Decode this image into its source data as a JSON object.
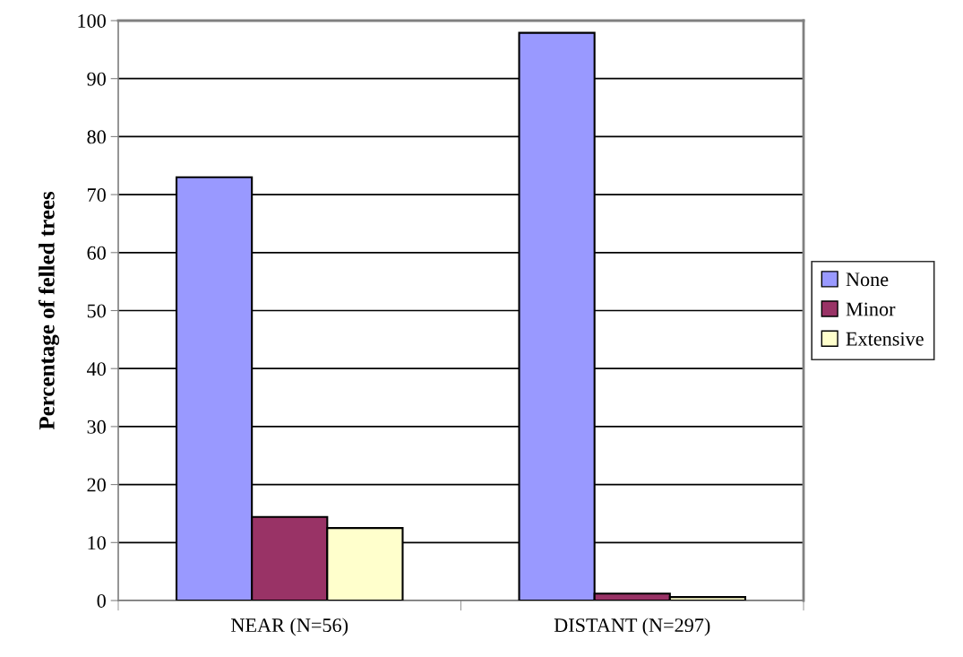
{
  "chart_data": {
    "type": "bar",
    "ylabel": "Percentage of felled trees",
    "categories": [
      "NEAR (N=56)",
      "DISTANT (N=297)"
    ],
    "series": [
      {
        "name": "None",
        "color": "#9999ff",
        "values": [
          73,
          97.9
        ]
      },
      {
        "name": "Minor",
        "color": "#993366",
        "values": [
          14.4,
          1.2
        ]
      },
      {
        "name": "Extensive",
        "color": "#ffffcc",
        "values": [
          12.5,
          0.6
        ]
      }
    ],
    "ylim": [
      0,
      100
    ],
    "yticks": [
      0,
      10,
      20,
      30,
      40,
      50,
      60,
      70,
      80,
      90,
      100
    ],
    "grid": "y",
    "legend": "right"
  }
}
